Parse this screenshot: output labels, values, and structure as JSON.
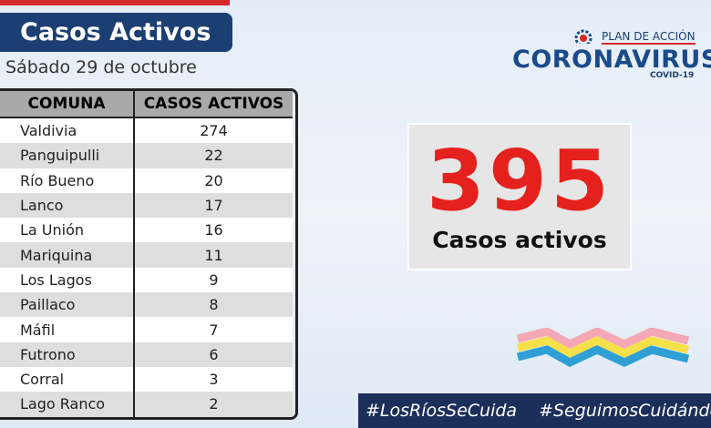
{
  "header": {
    "title": "Casos Activos",
    "date": "Sábado 29 de octubre"
  },
  "logo": {
    "plan": "PLAN DE ACCIÓN",
    "name": "CORONAVIRUS",
    "sub": "COVID-19"
  },
  "table": {
    "columns": [
      "COMUNA",
      "CASOS ACTIVOS"
    ],
    "rows": [
      [
        "Valdivia",
        274
      ],
      [
        "Panguipulli",
        22
      ],
      [
        "Río Bueno",
        20
      ],
      [
        "Lanco",
        17
      ],
      [
        "La Unión",
        16
      ],
      [
        "Mariquina",
        11
      ],
      [
        "Los Lagos",
        9
      ],
      [
        "Paillaco",
        8
      ],
      [
        "Máfil",
        7
      ],
      [
        "Futrono",
        6
      ],
      [
        "Corral",
        3
      ],
      [
        "Lago Ranco",
        2
      ]
    ]
  },
  "total": {
    "value": 395,
    "label": "Casos activos"
  },
  "hashtags": [
    "#LosRíosSeCuida",
    "#SeguimosCuidándonos"
  ]
}
